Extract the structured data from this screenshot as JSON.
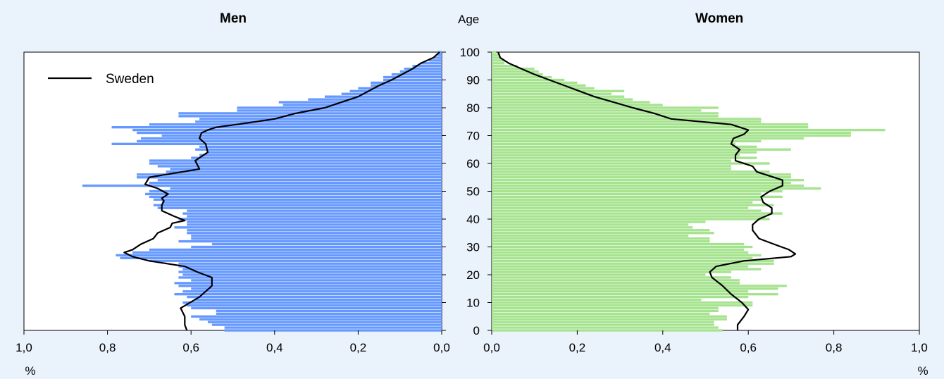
{
  "chart_data": [
    {
      "type": "bar",
      "title": "Men",
      "xlabel": "%",
      "ylabel": "Age",
      "orientation": "horizontal",
      "xlim": [
        0,
        1.0
      ],
      "x_reversed": true,
      "ylim": [
        0,
        100
      ],
      "xticks": [
        "1,0",
        "0,8",
        "0,6",
        "0,4",
        "0,2",
        "0,0"
      ],
      "yticks": [
        "0",
        "10",
        "20",
        "30",
        "40",
        "50",
        "60",
        "70",
        "80",
        "90",
        "100"
      ],
      "bar_color": "#6699ff",
      "legend": {
        "placement": "top-left",
        "entries": [
          "Sweden"
        ]
      },
      "ages": [
        0,
        1,
        2,
        3,
        4,
        5,
        6,
        7,
        8,
        9,
        10,
        11,
        12,
        13,
        14,
        15,
        16,
        17,
        18,
        19,
        20,
        21,
        22,
        23,
        24,
        25,
        26,
        27,
        28,
        29,
        30,
        31,
        32,
        33,
        34,
        35,
        36,
        37,
        38,
        39,
        40,
        41,
        42,
        43,
        44,
        45,
        46,
        47,
        48,
        49,
        50,
        51,
        52,
        53,
        54,
        55,
        56,
        57,
        58,
        59,
        60,
        61,
        62,
        63,
        64,
        65,
        66,
        67,
        68,
        69,
        70,
        71,
        72,
        73,
        74,
        75,
        76,
        77,
        78,
        79,
        80,
        81,
        82,
        83,
        84,
        85,
        86,
        87,
        88,
        89,
        90,
        91,
        92,
        93,
        94,
        95,
        96,
        97,
        98,
        99,
        100
      ],
      "values": [
        0.52,
        0.52,
        0.55,
        0.56,
        0.58,
        0.6,
        0.54,
        0.54,
        0.6,
        0.61,
        0.62,
        0.59,
        0.61,
        0.64,
        0.62,
        0.6,
        0.63,
        0.64,
        0.6,
        0.63,
        0.62,
        0.63,
        0.62,
        0.63,
        0.63,
        0.7,
        0.77,
        0.78,
        0.74,
        0.7,
        0.6,
        0.55,
        0.63,
        0.6,
        0.6,
        0.61,
        0.61,
        0.64,
        0.61,
        0.61,
        0.63,
        0.61,
        0.62,
        0.61,
        0.68,
        0.69,
        0.67,
        0.69,
        0.7,
        0.71,
        0.7,
        0.65,
        0.86,
        0.7,
        0.68,
        0.73,
        0.73,
        0.66,
        0.65,
        0.68,
        0.7,
        0.7,
        0.6,
        0.58,
        0.56,
        0.59,
        0.58,
        0.79,
        0.73,
        0.72,
        0.67,
        0.73,
        0.74,
        0.79,
        0.7,
        0.59,
        0.58,
        0.63,
        0.63,
        0.49,
        0.49,
        0.38,
        0.39,
        0.32,
        0.28,
        0.24,
        0.22,
        0.2,
        0.17,
        0.17,
        0.14,
        0.14,
        0.12,
        0.1,
        0.09,
        0.07,
        0.05,
        0.03,
        0.02,
        0.01,
        0.01
      ],
      "series": [
        {
          "name": "Sweden",
          "ages": [
            0,
            2,
            5,
            8,
            12,
            16,
            19,
            21,
            23,
            25,
            26.5,
            28,
            29,
            31,
            33,
            35,
            37,
            38.5,
            39.5,
            41,
            43,
            45,
            46.5,
            47.5,
            49,
            51,
            52.5,
            55,
            58,
            61,
            64,
            67,
            69,
            71,
            72,
            73,
            74,
            76,
            78,
            80,
            82,
            84,
            86,
            88,
            90,
            92,
            94,
            96,
            98,
            100
          ],
          "values": [
            0.61,
            0.615,
            0.615,
            0.625,
            0.58,
            0.55,
            0.55,
            0.585,
            0.615,
            0.7,
            0.74,
            0.76,
            0.74,
            0.72,
            0.69,
            0.68,
            0.65,
            0.645,
            0.615,
            0.64,
            0.67,
            0.67,
            0.665,
            0.67,
            0.655,
            0.68,
            0.71,
            0.7,
            0.58,
            0.59,
            0.56,
            0.565,
            0.58,
            0.575,
            0.56,
            0.54,
            0.49,
            0.4,
            0.35,
            0.28,
            0.24,
            0.2,
            0.175,
            0.15,
            0.12,
            0.095,
            0.07,
            0.05,
            0.02,
            0.005
          ]
        }
      ]
    },
    {
      "type": "bar",
      "title": "Women",
      "xlabel": "%",
      "ylabel": "Age",
      "orientation": "horizontal",
      "xlim": [
        0,
        1.0
      ],
      "x_reversed": false,
      "ylim": [
        0,
        100
      ],
      "xticks": [
        "0,0",
        "0,2",
        "0,4",
        "0,6",
        "0,8",
        "1,0"
      ],
      "yticks": [
        "0",
        "10",
        "20",
        "30",
        "40",
        "50",
        "60",
        "70",
        "80",
        "90",
        "100"
      ],
      "bar_color": "#a6e38f",
      "ages": [
        0,
        1,
        2,
        3,
        4,
        5,
        6,
        7,
        8,
        9,
        10,
        11,
        12,
        13,
        14,
        15,
        16,
        17,
        18,
        19,
        20,
        21,
        22,
        23,
        24,
        25,
        26,
        27,
        28,
        29,
        30,
        31,
        32,
        33,
        34,
        35,
        36,
        37,
        38,
        39,
        40,
        41,
        42,
        43,
        44,
        45,
        46,
        47,
        48,
        49,
        50,
        51,
        52,
        53,
        54,
        55,
        56,
        57,
        58,
        59,
        60,
        61,
        62,
        63,
        64,
        65,
        66,
        67,
        68,
        69,
        70,
        71,
        72,
        73,
        74,
        75,
        76,
        77,
        78,
        79,
        80,
        81,
        82,
        83,
        84,
        85,
        86,
        87,
        88,
        89,
        90,
        91,
        92,
        93,
        94,
        95,
        96,
        97,
        98,
        99,
        100
      ],
      "values": [
        0.54,
        0.53,
        0.52,
        0.52,
        0.55,
        0.55,
        0.51,
        0.53,
        0.53,
        0.61,
        0.61,
        0.49,
        0.6,
        0.67,
        0.6,
        0.67,
        0.69,
        0.58,
        0.58,
        0.56,
        0.5,
        0.56,
        0.63,
        0.6,
        0.66,
        0.66,
        0.61,
        0.63,
        0.6,
        0.59,
        0.61,
        0.59,
        0.51,
        0.51,
        0.46,
        0.52,
        0.51,
        0.47,
        0.46,
        0.5,
        0.65,
        0.64,
        0.68,
        0.63,
        0.6,
        0.66,
        0.61,
        0.63,
        0.68,
        0.63,
        0.68,
        0.77,
        0.73,
        0.7,
        0.73,
        0.7,
        0.7,
        0.65,
        0.56,
        0.56,
        0.65,
        0.56,
        0.62,
        0.58,
        0.62,
        0.7,
        0.62,
        0.57,
        0.63,
        0.73,
        0.84,
        0.84,
        0.92,
        0.74,
        0.74,
        0.63,
        0.63,
        0.53,
        0.53,
        0.49,
        0.53,
        0.4,
        0.37,
        0.33,
        0.31,
        0.28,
        0.31,
        0.24,
        0.22,
        0.2,
        0.17,
        0.14,
        0.12,
        0.11,
        0.1,
        0.06,
        0.03,
        0.03,
        0.02,
        0.02,
        0.01
      ],
      "series": [
        {
          "name": "Sweden",
          "ages": [
            0,
            2,
            5,
            7.5,
            10,
            13,
            16,
            19,
            21,
            23,
            25,
            26.5,
            27.5,
            29,
            31,
            33,
            36,
            38,
            40,
            42,
            44,
            46,
            48,
            50,
            52,
            54,
            57,
            59,
            61,
            63,
            65,
            67,
            69,
            70.5,
            72,
            74,
            76,
            78,
            80,
            82,
            84,
            86,
            88,
            90,
            92,
            94,
            96,
            98,
            100
          ],
          "values": [
            0.575,
            0.575,
            0.59,
            0.6,
            0.585,
            0.56,
            0.54,
            0.515,
            0.51,
            0.525,
            0.59,
            0.7,
            0.71,
            0.695,
            0.66,
            0.625,
            0.61,
            0.61,
            0.625,
            0.655,
            0.655,
            0.635,
            0.63,
            0.65,
            0.68,
            0.68,
            0.62,
            0.61,
            0.57,
            0.57,
            0.58,
            0.56,
            0.565,
            0.59,
            0.6,
            0.56,
            0.42,
            0.38,
            0.33,
            0.285,
            0.24,
            0.205,
            0.17,
            0.135,
            0.1,
            0.07,
            0.04,
            0.02,
            0.015
          ]
        }
      ]
    }
  ]
}
